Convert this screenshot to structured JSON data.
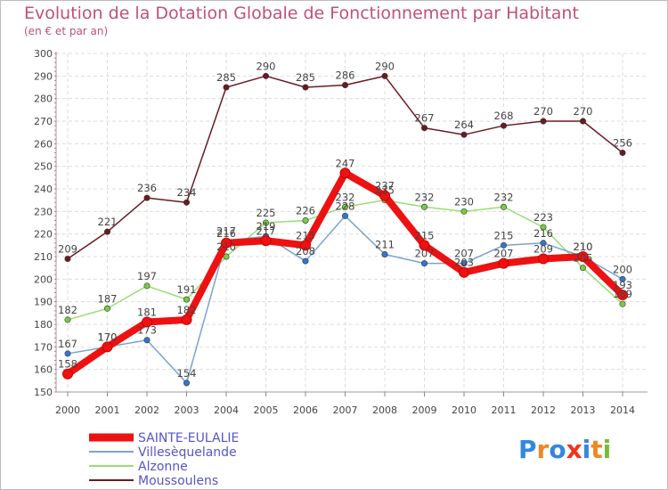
{
  "header": {
    "title": "Evolution de la Dotation Globale de Fonctionnement par Habitant",
    "subtitle": "(en € et par an)"
  },
  "logo": {
    "text": "Proxiti"
  },
  "chart_data": {
    "type": "line",
    "title": "Evolution de la Dotation Globale de Fonctionnement par Habitant",
    "subtitle": "(en € et par an)",
    "xlabel": "",
    "ylabel": "",
    "ylim": [
      150,
      300
    ],
    "yticks": [
      150,
      160,
      170,
      180,
      190,
      200,
      210,
      220,
      230,
      240,
      250,
      260,
      270,
      280,
      290,
      300
    ],
    "grid": true,
    "categories": [
      "2000",
      "2001",
      "2002",
      "2003",
      "2004",
      "2005",
      "2006",
      "2007",
      "2008",
      "2009",
      "2010",
      "2011",
      "2012",
      "2013",
      "2014"
    ],
    "series": [
      {
        "name": "Moussoulens",
        "color": "#6b1a22",
        "dot": "#6b1a22",
        "values": [
          209,
          221,
          236,
          234,
          285,
          290,
          285,
          286,
          290,
          267,
          264,
          268,
          270,
          270,
          256
        ]
      },
      {
        "name": "Alzonne",
        "color": "#99dd77",
        "dot": "#77cc44",
        "values": [
          182,
          187,
          197,
          191,
          210,
          225,
          226,
          232,
          235,
          232,
          230,
          232,
          223,
          205,
          189
        ]
      },
      {
        "name": "Villesèquelande",
        "color": "#7aa3cc",
        "dot": "#3377cc",
        "values": [
          167,
          170,
          173,
          154,
          217,
          219,
          208,
          228,
          211,
          207,
          207,
          215,
          216,
          210,
          200
        ]
      },
      {
        "name": "SAINTE-EULALIE",
        "color": "#ee1111",
        "dot": "#ee1111",
        "values": [
          158,
          170,
          181,
          182,
          216,
          217,
          215,
          247,
          237,
          215,
          203,
          207,
          209,
          210,
          193
        ]
      }
    ],
    "legend": [
      "SAINTE-EULALIE",
      "Villesèquelande",
      "Alzonne",
      "Moussoulens"
    ],
    "legend_position": "bottom-left"
  }
}
